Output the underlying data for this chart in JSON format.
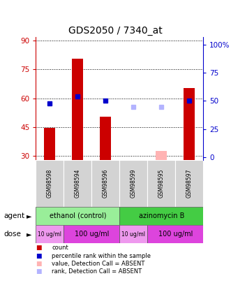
{
  "title": "GDS2050 / 7340_at",
  "samples": [
    "GSM98598",
    "GSM98594",
    "GSM98596",
    "GSM98599",
    "GSM98595",
    "GSM98597"
  ],
  "counts": [
    44.5,
    80.5,
    50.5,
    null,
    null,
    65.5
  ],
  "ranks": [
    47.5,
    54.0,
    50.0,
    null,
    null,
    50.5
  ],
  "counts_absent": [
    null,
    null,
    null,
    null,
    32.5,
    null
  ],
  "ranks_absent": [
    null,
    null,
    null,
    44.5,
    44.8,
    null
  ],
  "left_yticks": [
    30,
    45,
    60,
    75,
    90
  ],
  "right_yticks": [
    0,
    25,
    50,
    75,
    100
  ],
  "left_ylim": [
    28,
    92
  ],
  "right_ylim": [
    -2.5,
    107
  ],
  "bar_color": "#cc0000",
  "rank_color": "#0000cc",
  "absent_bar_color": "#ffb3b3",
  "absent_rank_color": "#b3b3ff",
  "left_axis_color": "#cc0000",
  "right_axis_color": "#0000cc",
  "grid_color": "#000000",
  "bg_color": "#ffffff",
  "ethanol_color": "#99ee99",
  "azinomycin_color": "#44cc44",
  "dose_light_color": "#ee99ee",
  "dose_dark_color": "#dd44dd"
}
